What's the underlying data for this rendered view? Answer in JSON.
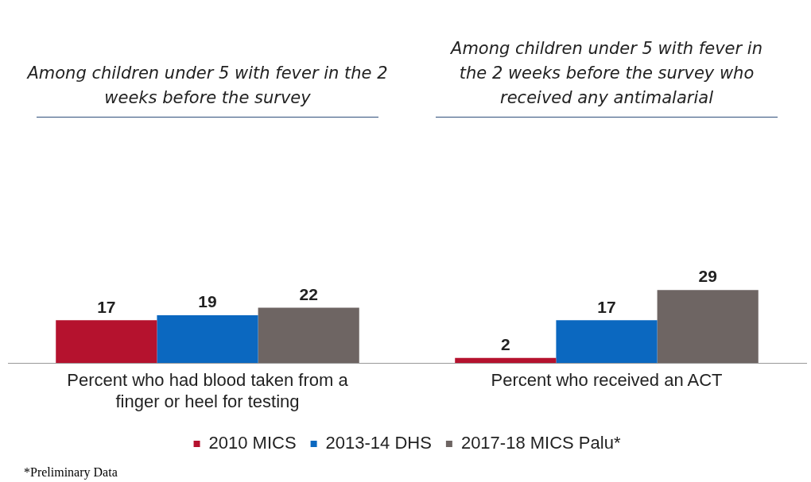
{
  "chart_data": {
    "type": "bar",
    "categories": [
      "Percent who had blood taken from a finger or heel for testing",
      "Percent who received an ACT"
    ],
    "series": [
      {
        "name": "2010 MICS",
        "color": "#b5122e",
        "values": [
          17,
          2
        ]
      },
      {
        "name": "2013-14 DHS",
        "color": "#0b68c0",
        "values": [
          19,
          17
        ]
      },
      {
        "name": "2017-18 MICS Palu*",
        "color": "#6e6563",
        "values": [
          22,
          29
        ]
      }
    ],
    "tick_labels": "x",
    "data_labels": true,
    "legend": "bottom",
    "grid": false,
    "annotations": [
      "Among children under 5 with fever in the 2 weeks before the survey",
      "Among children under 5 with fever in the 2 weeks before the survey who received any antimalarial",
      "*Preliminary Data"
    ]
  }
}
